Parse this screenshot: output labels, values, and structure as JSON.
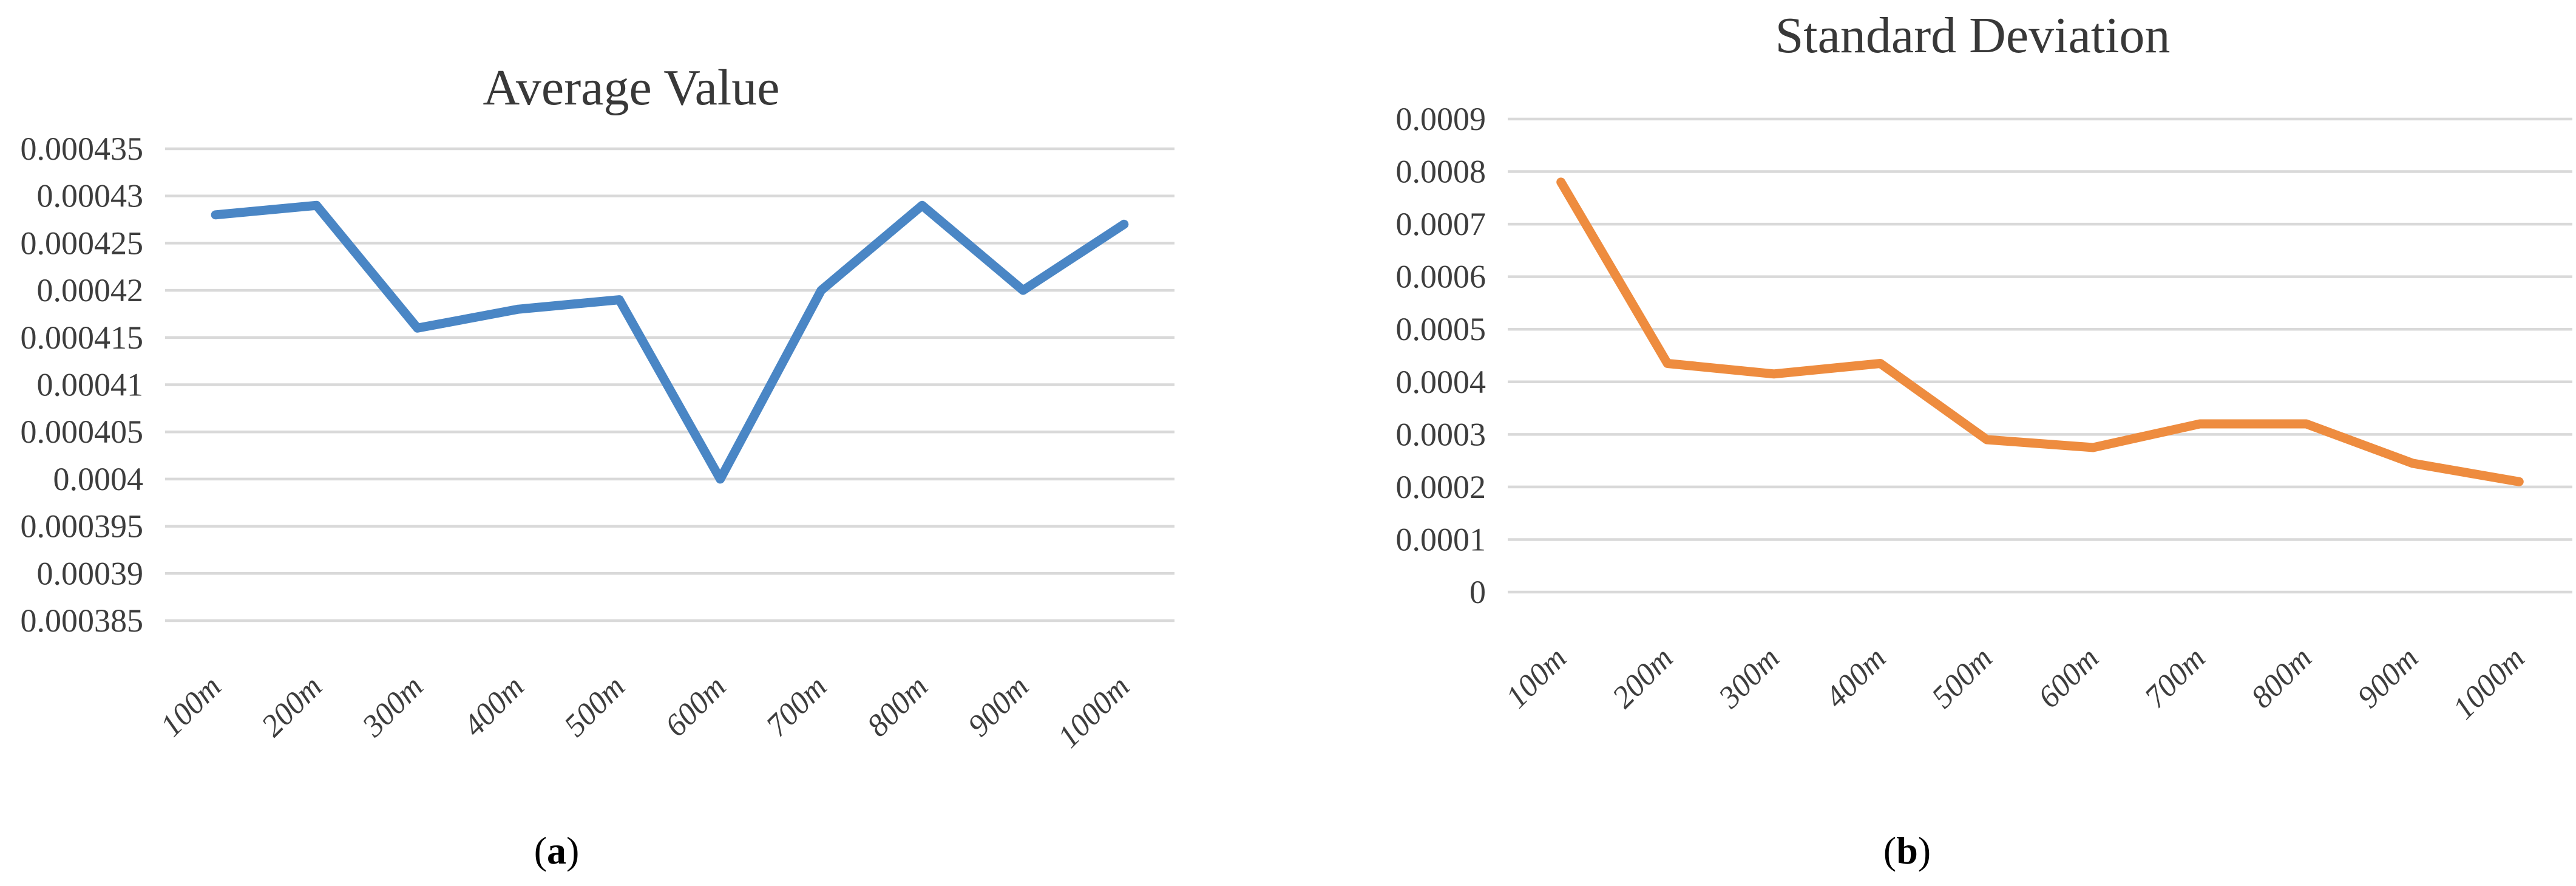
{
  "figure": {
    "captions": [
      {
        "open": "(",
        "letter": "a",
        "close": ")"
      },
      {
        "open": "(",
        "letter": "b",
        "close": ")"
      }
    ]
  },
  "chart_data": [
    {
      "type": "line",
      "title": "Average Value",
      "categories": [
        "100m",
        "200m",
        "300m",
        "400m",
        "500m",
        "600m",
        "700m",
        "800m",
        "900m",
        "1000m"
      ],
      "values": [
        0.000428,
        0.000429,
        0.000416,
        0.000418,
        0.000419,
        0.0004,
        0.00042,
        0.000429,
        0.00042,
        0.000427
      ],
      "ylim": [
        0.000385,
        0.000435
      ],
      "yticks": [
        {
          "value": 0.000435,
          "label": "0.000435"
        },
        {
          "value": 0.00043,
          "label": "0.00043"
        },
        {
          "value": 0.000425,
          "label": "0.000425"
        },
        {
          "value": 0.00042,
          "label": "0.00042"
        },
        {
          "value": 0.000415,
          "label": "0.000415"
        },
        {
          "value": 0.00041,
          "label": "0.00041"
        },
        {
          "value": 0.000405,
          "label": "0.000405"
        },
        {
          "value": 0.0004,
          "label": "0.0004"
        },
        {
          "value": 0.000395,
          "label": "0.000395"
        },
        {
          "value": 0.00039,
          "label": "0.00039"
        },
        {
          "value": 0.000385,
          "label": "0.000385"
        }
      ],
      "xlabel": "",
      "ylabel": "",
      "grid": true,
      "legend": "none",
      "line_color": "#4A86C5"
    },
    {
      "type": "line",
      "title": "Standard Deviation",
      "categories": [
        "100m",
        "200m",
        "300m",
        "400m",
        "500m",
        "600m",
        "700m",
        "800m",
        "900m",
        "1000m"
      ],
      "values": [
        0.00078,
        0.000435,
        0.000415,
        0.000435,
        0.00029,
        0.000275,
        0.00032,
        0.00032,
        0.000245,
        0.00021
      ],
      "ylim": [
        0,
        0.0009
      ],
      "yticks": [
        {
          "value": 0.0009,
          "label": "0.0009"
        },
        {
          "value": 0.0008,
          "label": "0.0008"
        },
        {
          "value": 0.0007,
          "label": "0.0007"
        },
        {
          "value": 0.0006,
          "label": "0.0006"
        },
        {
          "value": 0.0005,
          "label": "0.0005"
        },
        {
          "value": 0.0004,
          "label": "0.0004"
        },
        {
          "value": 0.0003,
          "label": "0.0003"
        },
        {
          "value": 0.0002,
          "label": "0.0002"
        },
        {
          "value": 0.0001,
          "label": "0.0001"
        },
        {
          "value": 0,
          "label": "0"
        }
      ],
      "xlabel": "",
      "ylabel": "",
      "grid": true,
      "legend": "none",
      "line_color": "#EE8C3F"
    }
  ]
}
